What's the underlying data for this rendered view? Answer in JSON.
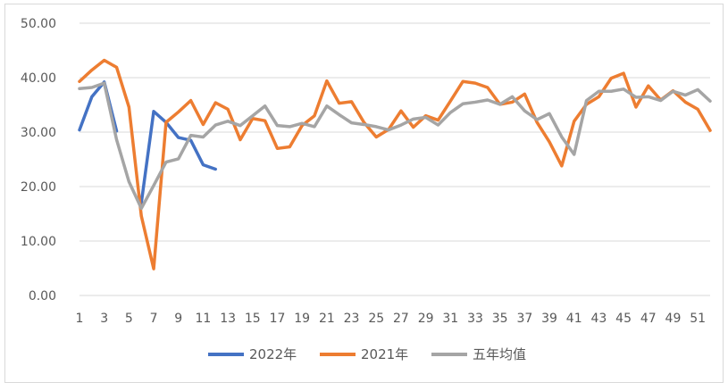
{
  "chart_data": {
    "type": "line",
    "title": "",
    "xlabel": "",
    "ylabel": "",
    "x": [
      1,
      2,
      3,
      4,
      5,
      6,
      7,
      8,
      9,
      10,
      11,
      12,
      13,
      14,
      15,
      16,
      17,
      18,
      19,
      20,
      21,
      22,
      23,
      24,
      25,
      26,
      27,
      28,
      29,
      30,
      31,
      32,
      33,
      34,
      35,
      36,
      37,
      38,
      39,
      40,
      41,
      42,
      43,
      44,
      45,
      46,
      47,
      48,
      49,
      50,
      51,
      52
    ],
    "x_tick_labels": [
      "1",
      "3",
      "5",
      "7",
      "9",
      "11",
      "13",
      "15",
      "17",
      "19",
      "21",
      "23",
      "25",
      "27",
      "29",
      "31",
      "33",
      "35",
      "37",
      "39",
      "41",
      "43",
      "45",
      "47",
      "49",
      "51"
    ],
    "ylim": [
      0,
      50
    ],
    "y_tick_labels": [
      "0.00",
      "10.00",
      "20.00",
      "30.00",
      "40.00",
      "50.00"
    ],
    "grid": "horizontal",
    "legend_position": "bottom",
    "series": [
      {
        "name": "2022年",
        "color": "#4472C4",
        "values": [
          30.4,
          36.5,
          39.2,
          30.2,
          null,
          17.0,
          33.8,
          31.8,
          29.0,
          28.5,
          24.0,
          23.2,
          null,
          null,
          null,
          null,
          null,
          null,
          null,
          null,
          null,
          null,
          null,
          null,
          null,
          null,
          null,
          null,
          null,
          null,
          null,
          null,
          null,
          null,
          null,
          null,
          null,
          null,
          null,
          null,
          null,
          null,
          null,
          null,
          null,
          null,
          null,
          null,
          null,
          null,
          null,
          null
        ]
      },
      {
        "name": "2021年",
        "color": "#ED7D31",
        "values": [
          39.3,
          41.4,
          43.2,
          41.9,
          34.6,
          14.6,
          4.9,
          31.8,
          33.7,
          35.8,
          31.4,
          35.4,
          34.2,
          28.6,
          32.5,
          32.1,
          27.0,
          27.3,
          31.2,
          33.0,
          39.4,
          35.3,
          35.6,
          31.8,
          29.1,
          30.5,
          33.9,
          30.9,
          33.0,
          32.2,
          35.7,
          39.3,
          39.0,
          38.2,
          35.1,
          35.5,
          37.0,
          31.8,
          28.2,
          23.8,
          32.0,
          35.1,
          36.5,
          39.9,
          40.8,
          34.6,
          38.5,
          35.9,
          37.6,
          35.5,
          34.2,
          30.3
        ]
      },
      {
        "name": "五年均值",
        "color": "#A5A5A5",
        "values": [
          38.0,
          38.2,
          39.0,
          28.6,
          20.9,
          16.0,
          20.2,
          24.5,
          25.1,
          29.4,
          29.1,
          31.3,
          32.0,
          31.2,
          33.0,
          34.8,
          31.2,
          31.0,
          31.6,
          31.0,
          34.8,
          33.2,
          31.7,
          31.4,
          31.0,
          30.4,
          31.3,
          32.4,
          32.7,
          31.3,
          33.6,
          35.2,
          35.5,
          35.9,
          35.1,
          36.5,
          33.9,
          32.3,
          33.4,
          29.1,
          25.9,
          35.8,
          37.5,
          37.5,
          37.9,
          36.4,
          36.5,
          35.8,
          37.5,
          36.8,
          37.8,
          35.7
        ]
      }
    ]
  }
}
